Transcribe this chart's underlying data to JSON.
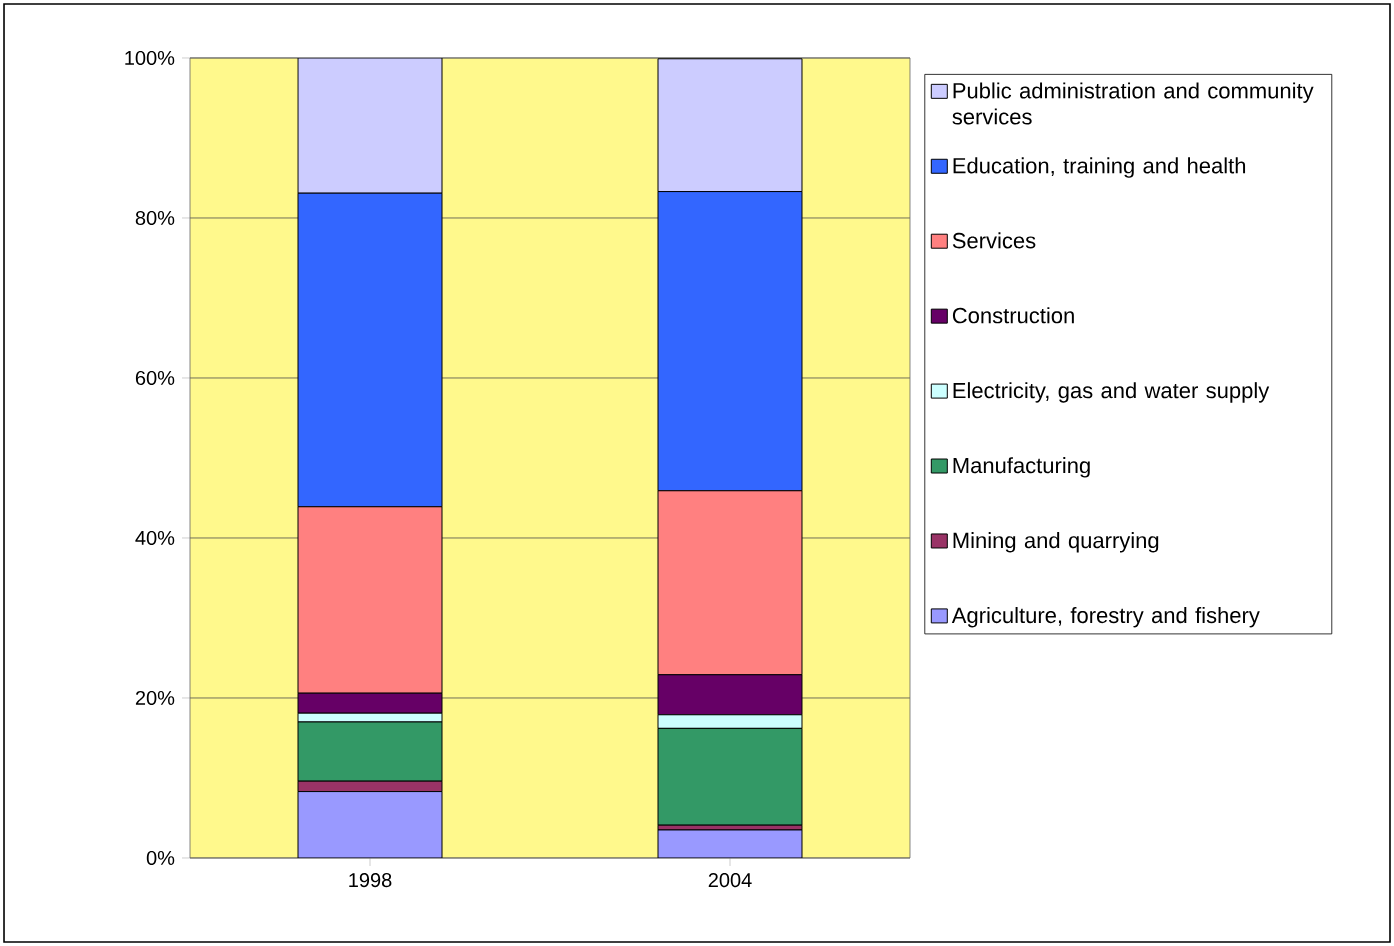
{
  "chart_data": {
    "type": "bar",
    "stacked": true,
    "categories": [
      "1998",
      "2004"
    ],
    "series": [
      {
        "name": "Agriculture, forestry and fishery",
        "color": "#9999ff",
        "values": [
          8.3,
          3.5
        ]
      },
      {
        "name": "Mining and quarrying",
        "color": "#993366",
        "values": [
          1.3,
          0.6
        ]
      },
      {
        "name": "Manufacturing",
        "color": "#339966",
        "values": [
          7.4,
          12.1
        ]
      },
      {
        "name": "Electricity, gas and water supply",
        "color": "#ccffff",
        "values": [
          1.1,
          1.7
        ]
      },
      {
        "name": "Construction",
        "color": "#660066",
        "values": [
          2.5,
          5.0
        ]
      },
      {
        "name": "Services",
        "color": "#ff8080",
        "values": [
          23.3,
          23.0
        ]
      },
      {
        "name": "Education, training and health",
        "color": "#3366ff",
        "values": [
          39.2,
          37.4
        ]
      },
      {
        "name": "Public administration and community services",
        "color": "#ccccff",
        "values": [
          16.9,
          16.6
        ]
      }
    ],
    "ylim": [
      0,
      100
    ],
    "yticks": [
      {
        "value": 0,
        "label": "0%"
      },
      {
        "value": 20,
        "label": "20%"
      },
      {
        "value": 40,
        "label": "40%"
      },
      {
        "value": 60,
        "label": "60%"
      },
      {
        "value": 80,
        "label": "80%"
      },
      {
        "value": 100,
        "label": "100%"
      }
    ],
    "grid": "y",
    "legend": "right"
  }
}
